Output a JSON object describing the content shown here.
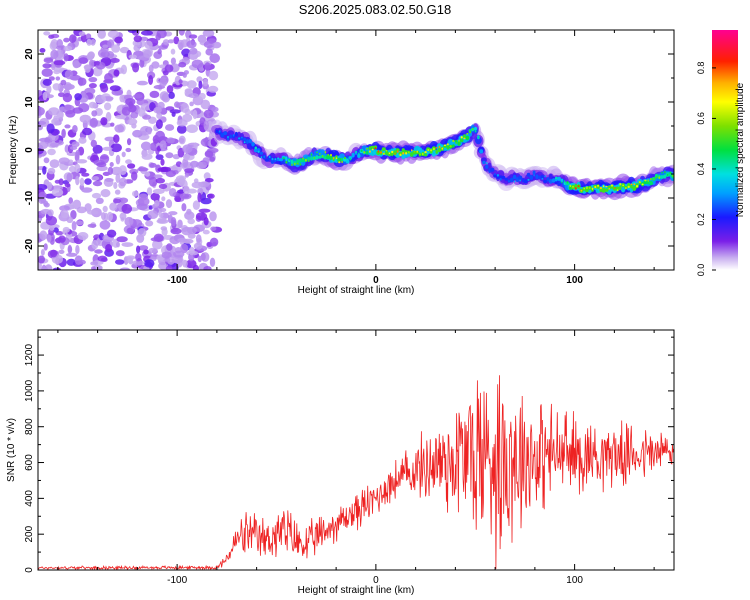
{
  "title": "S206.2025.083.02.50.G18",
  "chart_data": [
    {
      "type": "heatmap",
      "xlabel": "Height of straight line (km)",
      "ylabel": "Frequency (Hz)",
      "xlim": [
        -170,
        150
      ],
      "ylim": [
        -25,
        25
      ],
      "xticks": [
        -100,
        0,
        100
      ],
      "yticks": [
        -20,
        -10,
        0,
        10,
        20
      ],
      "colorbar": {
        "label": "Normalized spectral amplitude",
        "range": [
          0,
          0.95
        ],
        "ticks": [
          0.0,
          0.2,
          0.4,
          0.6,
          0.8
        ]
      },
      "noise_region_x": [
        -170,
        -80
      ],
      "ridge": {
        "x": [
          -80,
          -75,
          -70,
          -65,
          -60,
          -55,
          -50,
          -45,
          -40,
          -35,
          -30,
          -25,
          -20,
          -15,
          -10,
          -5,
          0,
          5,
          10,
          15,
          20,
          25,
          30,
          35,
          40,
          45,
          50,
          55,
          60,
          65,
          70,
          75,
          80,
          85,
          90,
          95,
          100,
          105,
          110,
          115,
          120,
          125,
          130,
          135,
          140,
          145,
          150
        ],
        "freq_hz": [
          4,
          3,
          3,
          2,
          0,
          -2,
          -2,
          -2,
          -3,
          -2,
          -1,
          -1,
          -2,
          -2,
          -1,
          0,
          0,
          -0.5,
          -0.5,
          -0.5,
          -0.5,
          -0.5,
          0,
          0.5,
          1.5,
          2.5,
          4.5,
          -3,
          -5,
          -6,
          -6,
          -6,
          -5,
          -6,
          -6,
          -7,
          -8,
          -8,
          -8,
          -8,
          -8,
          -7.5,
          -7.5,
          -7,
          -6,
          -5,
          -5.5
        ],
        "amplitude": [
          0.3,
          0.35,
          0.3,
          0.35,
          0.4,
          0.3,
          0.35,
          0.5,
          0.6,
          0.6,
          0.55,
          0.6,
          0.75,
          0.5,
          0.4,
          0.6,
          0.85,
          0.7,
          0.75,
          0.7,
          0.7,
          0.7,
          0.75,
          0.7,
          0.65,
          0.7,
          0.5,
          0.35,
          0.3,
          0.3,
          0.35,
          0.3,
          0.35,
          0.3,
          0.4,
          0.5,
          0.8,
          0.75,
          0.7,
          0.75,
          0.8,
          0.7,
          0.75,
          0.65,
          0.6,
          0.55,
          0.6
        ]
      }
    },
    {
      "type": "line",
      "xlabel": "Height of straight line (km)",
      "ylabel": "SNR (10 * v/v)",
      "xlim": [
        -170,
        150
      ],
      "ylim": [
        0,
        1340
      ],
      "xticks": [
        -100,
        0,
        100
      ],
      "yticks": [
        0,
        200,
        400,
        600,
        800,
        1000,
        1200
      ],
      "color": "#ee2222",
      "envelope": {
        "x": [
          -170,
          -80,
          -75,
          -70,
          -65,
          -60,
          -55,
          -50,
          -45,
          -40,
          -35,
          -30,
          -25,
          -20,
          -15,
          -10,
          -5,
          0,
          5,
          10,
          15,
          20,
          25,
          30,
          35,
          40,
          45,
          50,
          55,
          60,
          65,
          70,
          75,
          80,
          85,
          90,
          95,
          100,
          105,
          110,
          115,
          120,
          125,
          130,
          135,
          140,
          145,
          150
        ],
        "mean": [
          12,
          14,
          60,
          170,
          200,
          170,
          170,
          200,
          210,
          160,
          140,
          180,
          220,
          260,
          290,
          330,
          360,
          400,
          460,
          500,
          530,
          560,
          580,
          600,
          610,
          620,
          640,
          650,
          650,
          640,
          640,
          640,
          650,
          640,
          640,
          650,
          650,
          640,
          650,
          640,
          650,
          650,
          640,
          650,
          650,
          650,
          660,
          660
        ],
        "amp": [
          8,
          10,
          40,
          90,
          130,
          130,
          120,
          150,
          150,
          130,
          110,
          110,
          110,
          100,
          100,
          110,
          110,
          110,
          110,
          120,
          140,
          160,
          200,
          260,
          320,
          360,
          440,
          520,
          560,
          580,
          560,
          480,
          400,
          340,
          300,
          280,
          260,
          240,
          220,
          200,
          190,
          180,
          170,
          160,
          150,
          150,
          140,
          130
        ]
      }
    }
  ]
}
